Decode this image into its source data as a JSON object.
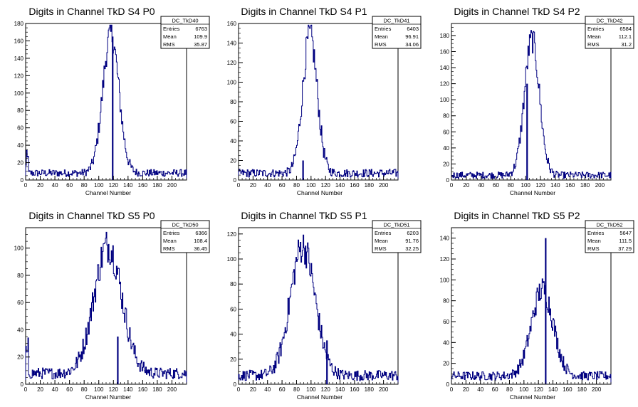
{
  "colors": {
    "line": "#000080",
    "frame": "#000000",
    "background": "#ffffff"
  },
  "chart_data": [
    {
      "type": "histogram",
      "title": "Digits in Channel TkD S4 P0",
      "xlabel": "Channel Number",
      "xlim": [
        0,
        220
      ],
      "ylim": [
        0,
        180
      ],
      "xticks": [
        0,
        20,
        40,
        60,
        80,
        100,
        120,
        140,
        160,
        180,
        200
      ],
      "yticks": [
        0,
        20,
        40,
        60,
        80,
        100,
        120,
        140,
        160,
        180
      ],
      "stats": {
        "name": "DC_TkD40",
        "rows": [
          {
            "label": "Entries",
            "value": "6763"
          },
          {
            "label": "Mean",
            "value": "109.9"
          },
          {
            "label": "RMS",
            "value": "35.87"
          }
        ]
      },
      "peak": {
        "center": 116,
        "height": 170,
        "width": 11
      },
      "baseline": 8,
      "spike": {
        "x": 119,
        "height": 165
      }
    },
    {
      "type": "histogram",
      "title": "Digits in Channel TkD S4 P1",
      "xlabel": "Channel Number",
      "xlim": [
        0,
        220
      ],
      "ylim": [
        0,
        160
      ],
      "xticks": [
        0,
        20,
        40,
        60,
        80,
        100,
        120,
        140,
        160,
        180,
        200
      ],
      "yticks": [
        0,
        20,
        40,
        60,
        80,
        100,
        120,
        140,
        160
      ],
      "stats": {
        "name": "DC_TkD41",
        "rows": [
          {
            "label": "Entries",
            "value": "6403"
          },
          {
            "label": "Mean",
            "value": "96.91"
          },
          {
            "label": "RMS",
            "value": "34.06"
          }
        ]
      },
      "peak": {
        "center": 98,
        "height": 150,
        "width": 10
      },
      "baseline": 7,
      "spike": {
        "x": 89,
        "height": 20
      }
    },
    {
      "type": "histogram",
      "title": "Digits in Channel TkD S4 P2",
      "xlabel": "Channel Number",
      "xlim": [
        0,
        215
      ],
      "ylim": [
        0,
        195
      ],
      "xticks": [
        0,
        20,
        40,
        60,
        80,
        100,
        120,
        140,
        160,
        180,
        200
      ],
      "yticks": [
        0,
        20,
        40,
        60,
        80,
        100,
        120,
        140,
        160,
        180
      ],
      "stats": {
        "name": "DC_TkD42",
        "rows": [
          {
            "label": "Entries",
            "value": "6584"
          },
          {
            "label": "Mean",
            "value": "112.1"
          },
          {
            "label": "RMS",
            "value": "31.2"
          }
        ]
      },
      "peak": {
        "center": 108,
        "height": 180,
        "width": 10
      },
      "baseline": 6,
      "spike": {
        "x": 102,
        "height": 120
      }
    },
    {
      "type": "histogram",
      "title": "Digits in Channel TkD S5 P0",
      "xlabel": "Channel Number",
      "xlim": [
        0,
        220
      ],
      "ylim": [
        0,
        115
      ],
      "xticks": [
        0,
        20,
        40,
        60,
        80,
        100,
        120,
        140,
        160,
        180,
        200
      ],
      "yticks": [
        0,
        20,
        40,
        60,
        80,
        100
      ],
      "stats": {
        "name": "DC_TkD50",
        "rows": [
          {
            "label": "Entries",
            "value": "6366"
          },
          {
            "label": "Mean",
            "value": "108.4"
          },
          {
            "label": "RMS",
            "value": "36.45"
          }
        ]
      },
      "peak": {
        "center": 112,
        "height": 100,
        "width": 19
      },
      "baseline": 8,
      "spike": {
        "x": 126,
        "height": 35
      }
    },
    {
      "type": "histogram",
      "title": "Digits in Channel TkD S5 P1",
      "xlabel": "Channel Number",
      "xlim": [
        0,
        220
      ],
      "ylim": [
        0,
        125
      ],
      "xticks": [
        0,
        20,
        40,
        60,
        80,
        100,
        120,
        140,
        160,
        180,
        200
      ],
      "yticks": [
        0,
        20,
        40,
        60,
        80,
        100,
        120
      ],
      "stats": {
        "name": "DC_TkD51",
        "rows": [
          {
            "label": "Entries",
            "value": "6203"
          },
          {
            "label": "Mean",
            "value": "91.76"
          },
          {
            "label": "RMS",
            "value": "32.25"
          }
        ]
      },
      "peak": {
        "center": 88,
        "height": 110,
        "width": 17
      },
      "baseline": 7,
      "spike": {
        "x": 122,
        "height": 35
      }
    },
    {
      "type": "histogram",
      "title": "Digits in Channel TkD S5 P2",
      "xlabel": "Channel Number",
      "xlim": [
        0,
        220
      ],
      "ylim": [
        0,
        150
      ],
      "xticks": [
        0,
        20,
        40,
        60,
        80,
        100,
        120,
        140,
        160,
        180,
        200
      ],
      "yticks": [
        0,
        20,
        40,
        60,
        80,
        100,
        120,
        140
      ],
      "stats": {
        "name": "DC_TkD52",
        "rows": [
          {
            "label": "Entries",
            "value": "5647"
          },
          {
            "label": "Mean",
            "value": "111.5"
          },
          {
            "label": "RMS",
            "value": "37.29"
          }
        ]
      },
      "peak": {
        "center": 125,
        "height": 88,
        "width": 15
      },
      "baseline": 8,
      "spike": {
        "x": 130,
        "height": 140
      }
    }
  ]
}
